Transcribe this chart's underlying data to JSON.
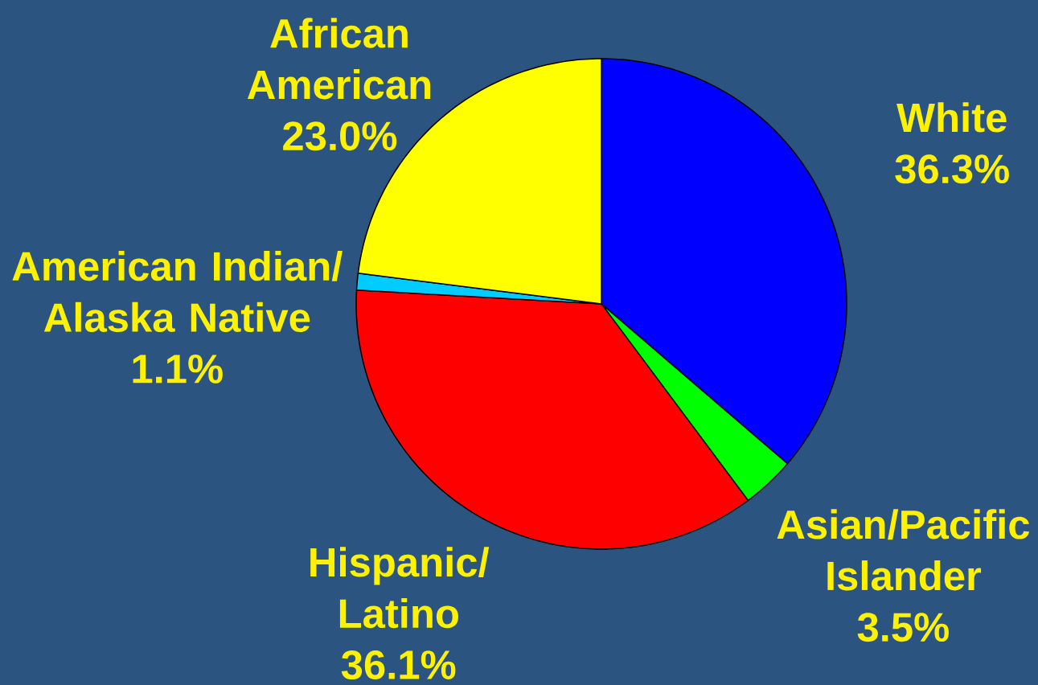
{
  "chart_data": {
    "type": "pie",
    "categories": [
      "White",
      "Asian/Pacific Islander",
      "Hispanic/ Latino",
      "American Indian/ Alaska Native",
      "African American"
    ],
    "values": [
      36.3,
      3.5,
      36.1,
      1.1,
      23.0
    ],
    "colors": [
      "#0000ff",
      "#00ff00",
      "#ff0000",
      "#00ccff",
      "#ffff00"
    ],
    "value_labels": [
      "36.3%",
      "3.5%",
      "36.1%",
      "1.1%",
      "23.0%"
    ]
  }
}
